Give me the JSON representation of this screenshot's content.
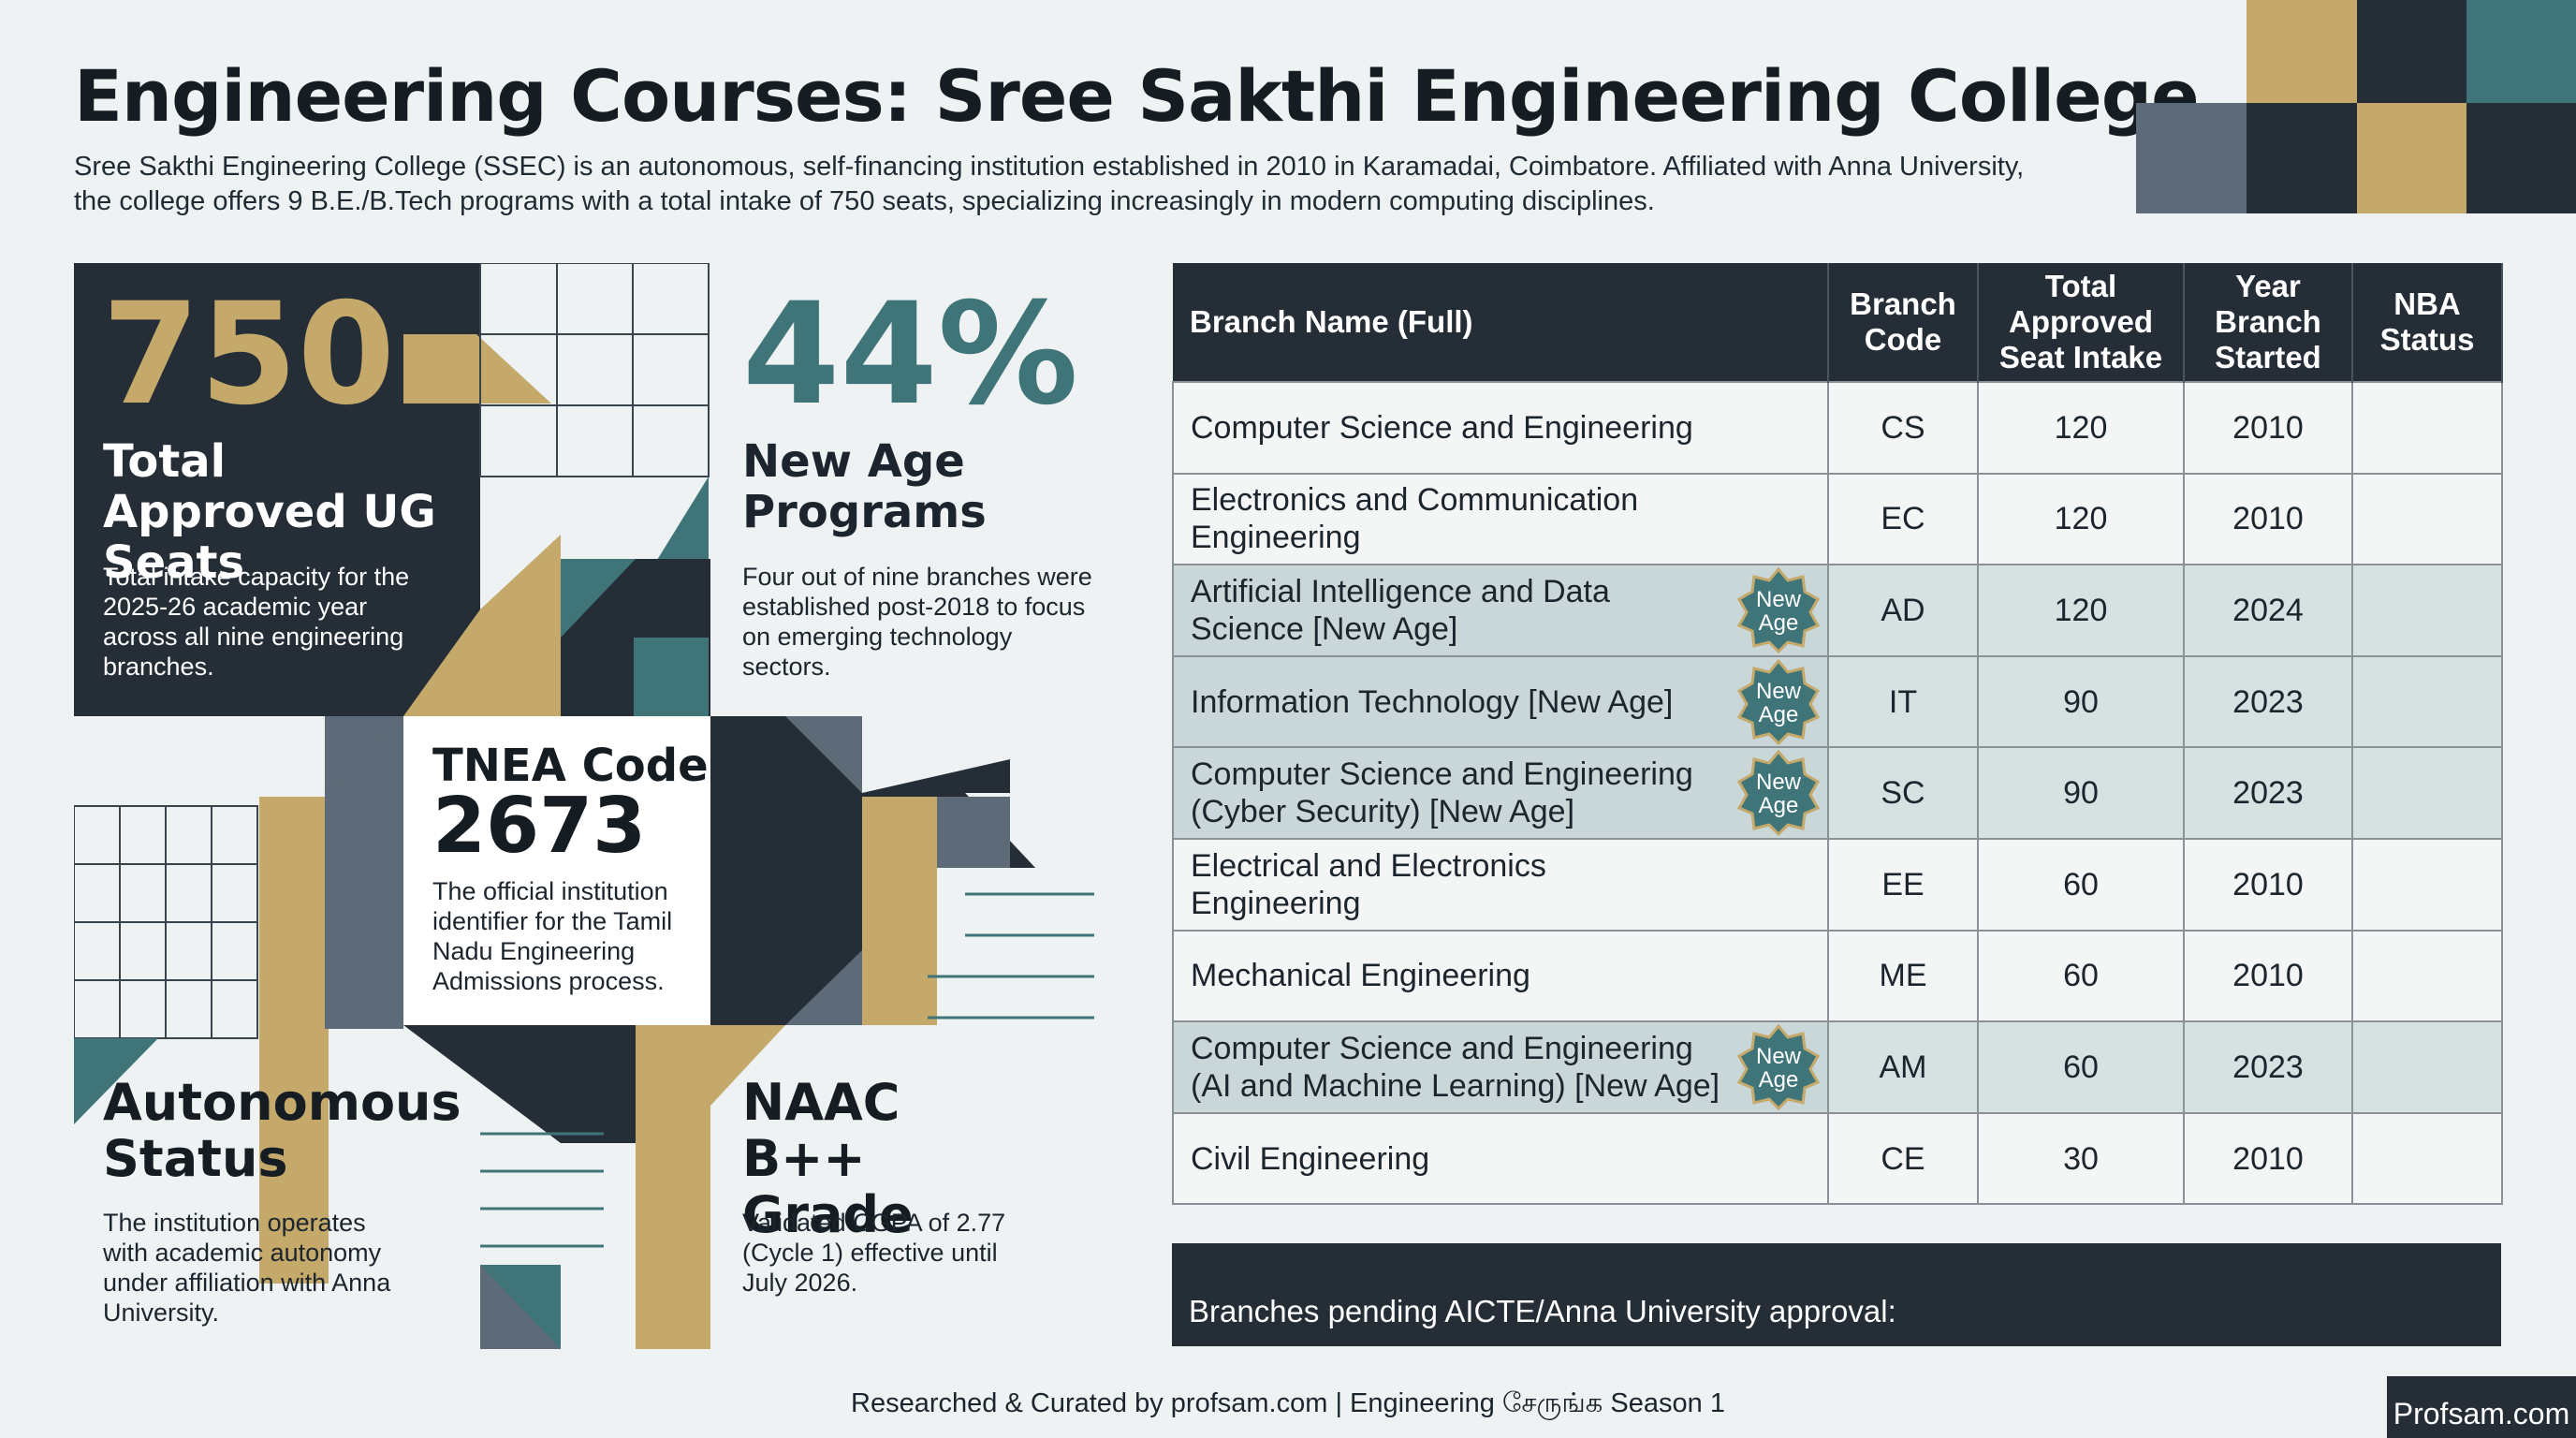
{
  "header": {
    "title": "Engineering Courses: Sree Sakthi Engineering College",
    "subtitle": "Sree Sakthi Engineering College (SSEC) is an autonomous, self-financing institution established in 2010 in Karamadai, Coimbatore. Affiliated with Anna University, the college offers 9 B.E./B.Tech programs with a total intake of 750 seats, specializing increasingly in modern computing disciplines."
  },
  "stats": {
    "seats": {
      "value": "750",
      "heading": "Total Approved UG Seats",
      "description": "Total intake capacity for the 2025-26 academic year across all nine engineering branches."
    },
    "new_age": {
      "value": "44%",
      "heading": "New Age Programs",
      "description": "Four out of nine branches were established post-2018 to focus on emerging technology sectors."
    },
    "tnea": {
      "heading": "TNEA Code",
      "value": "2673",
      "description": "The official institution identifier for the Tamil Nadu Engineering Admissions process."
    },
    "autonomous": {
      "heading": "Autonomous Status",
      "description": "The institution operates with academic autonomy under affiliation with Anna University."
    },
    "naac": {
      "heading": "NAAC B++ Grade",
      "description": "Validated CGPA of 2.77 (Cycle 1) effective until July 2026."
    }
  },
  "table": {
    "headers": [
      "Branch Name (Full)",
      "Branch Code",
      "Total Approved Seat Intake",
      "Year Branch Started",
      "NBA Status"
    ],
    "badge_label": "New Age",
    "rows": [
      {
        "name": "Computer Science and Engineering",
        "code": "CS",
        "intake": "120",
        "year": "2010",
        "nba": "",
        "new_age": false
      },
      {
        "name": "Electronics and Communication Engineering",
        "code": "EC",
        "intake": "120",
        "year": "2010",
        "nba": "",
        "new_age": false
      },
      {
        "name": "Artificial Intelligence and Data Science [New Age]",
        "code": "AD",
        "intake": "120",
        "year": "2024",
        "nba": "",
        "new_age": true
      },
      {
        "name": "Information Technology [New Age]",
        "code": "IT",
        "intake": "90",
        "year": "2023",
        "nba": "",
        "new_age": true
      },
      {
        "name": "Computer Science and Engineering (Cyber Security) [New Age]",
        "code": "SC",
        "intake": "90",
        "year": "2023",
        "nba": "",
        "new_age": true
      },
      {
        "name": "Electrical and Electronics Engineering",
        "code": "EE",
        "intake": "60",
        "year": "2010",
        "nba": "",
        "new_age": false
      },
      {
        "name": "Mechanical Engineering",
        "code": "ME",
        "intake": "60",
        "year": "2010",
        "nba": "",
        "new_age": false
      },
      {
        "name": "Computer Science and Engineering (AI and Machine Learning) [New Age]",
        "code": "AM",
        "intake": "60",
        "year": "2023",
        "nba": "",
        "new_age": true
      },
      {
        "name": "Civil Engineering",
        "code": "CE",
        "intake": "30",
        "year": "2010",
        "nba": "",
        "new_age": false
      }
    ],
    "pending_label": "Branches pending AICTE/Anna University approval:"
  },
  "footer": {
    "text": "Researched & Curated by profsam.com | Engineering சேருங்க Season 1",
    "logo": "Profsam.com"
  },
  "colors": {
    "dark": "#252e37",
    "gold": "#c4a96b",
    "teal": "#3f7479",
    "slate": "#5d6a78"
  }
}
